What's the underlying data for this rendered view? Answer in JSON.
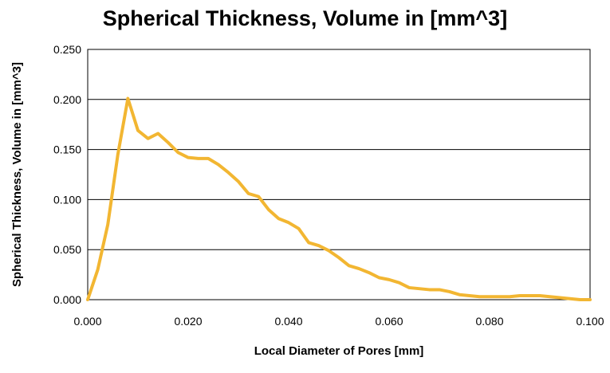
{
  "chart_data": {
    "type": "line",
    "title": "Spherical Thickness, Volume in [mm^3]",
    "xlabel": "Local Diameter of Pores [mm]",
    "ylabel": "Spherical Thickness, Volume in [mm^3]",
    "xlim": [
      0.0,
      0.1
    ],
    "ylim": [
      0.0,
      0.25
    ],
    "x_ticks": [
      "0.000",
      "0.020",
      "0.040",
      "0.060",
      "0.080",
      "0.100"
    ],
    "y_ticks": [
      "0.000",
      "0.050",
      "0.100",
      "0.150",
      "0.200",
      "0.250"
    ],
    "grid": "horizontal",
    "legend": "none",
    "series": [
      {
        "color": "#f2b632",
        "x": [
          0.0,
          0.002,
          0.004,
          0.006,
          0.008,
          0.01,
          0.012,
          0.014,
          0.016,
          0.018,
          0.02,
          0.022,
          0.024,
          0.026,
          0.028,
          0.03,
          0.032,
          0.034,
          0.036,
          0.038,
          0.04,
          0.042,
          0.044,
          0.046,
          0.048,
          0.05,
          0.052,
          0.054,
          0.056,
          0.058,
          0.06,
          0.062,
          0.064,
          0.066,
          0.068,
          0.07,
          0.072,
          0.074,
          0.076,
          0.078,
          0.08,
          0.082,
          0.084,
          0.086,
          0.088,
          0.09,
          0.092,
          0.094,
          0.096,
          0.098,
          0.1
        ],
        "values": [
          0.0,
          0.03,
          0.075,
          0.145,
          0.201,
          0.169,
          0.161,
          0.166,
          0.157,
          0.147,
          0.142,
          0.141,
          0.141,
          0.135,
          0.127,
          0.118,
          0.106,
          0.103,
          0.09,
          0.081,
          0.077,
          0.071,
          0.057,
          0.054,
          0.049,
          0.042,
          0.034,
          0.031,
          0.027,
          0.022,
          0.02,
          0.017,
          0.012,
          0.011,
          0.01,
          0.01,
          0.008,
          0.005,
          0.004,
          0.003,
          0.003,
          0.003,
          0.003,
          0.004,
          0.004,
          0.004,
          0.003,
          0.002,
          0.001,
          0.0,
          0.0
        ]
      }
    ]
  }
}
